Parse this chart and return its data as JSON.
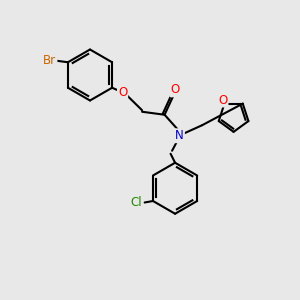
{
  "bg_color": "#e8e8e8",
  "bond_color": "#000000",
  "bond_width": 1.5,
  "atom_colors": {
    "Br": "#cc6600",
    "O": "#ff0000",
    "N": "#0000cc",
    "Cl": "#228800",
    "C": "#000000"
  },
  "font_size": 8.5,
  "fig_size": [
    3.0,
    3.0
  ],
  "dpi": 100,
  "xlim": [
    0,
    10
  ],
  "ylim": [
    0,
    10
  ]
}
